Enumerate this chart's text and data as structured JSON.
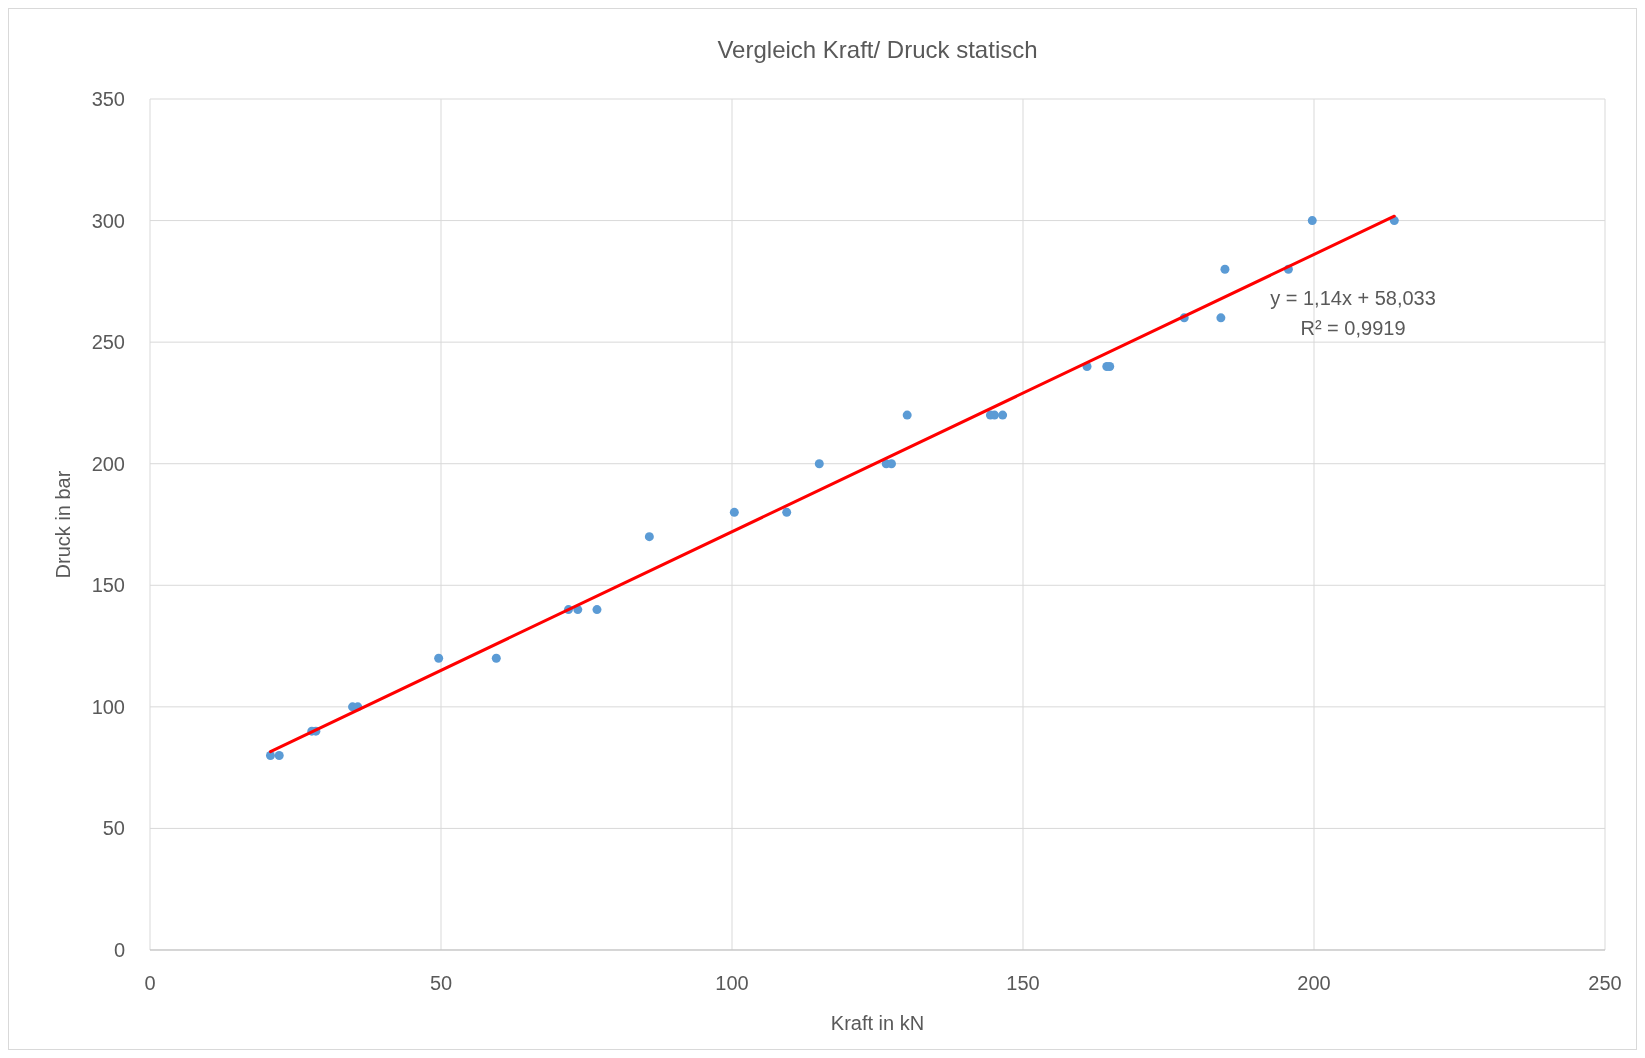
{
  "chart_data": {
    "type": "scatter",
    "title": "Vergleich Kraft/ Druck statisch",
    "xlabel": "Kraft in kN",
    "ylabel": "Druck in bar",
    "xlim": [
      0,
      250
    ],
    "xticks": [
      0,
      50,
      100,
      150,
      200,
      250
    ],
    "ylim": [
      0,
      350
    ],
    "yticks": [
      0,
      50,
      100,
      150,
      200,
      250,
      300,
      350
    ],
    "grid": true,
    "marker": "circle",
    "annotations": [
      "y = 1,14x + 58,033",
      "R² = 0,9919"
    ],
    "series": [
      {
        "color": "#5b9bd5",
        "x": [
          20.7,
          22.2,
          27.8,
          28.5,
          34.8,
          35.7,
          49.6,
          59.5,
          71.9,
          73.5,
          76.8,
          85.8,
          100.4,
          109.4,
          115.0,
          126.5,
          127.4,
          130.1,
          144.4,
          145.1,
          146.5,
          161.0,
          164.4,
          164.9,
          177.7,
          184.0,
          184.7,
          195.6,
          199.7,
          213.8
        ],
        "values": [
          80,
          80,
          90,
          90,
          100,
          100,
          120,
          120,
          140,
          140,
          140,
          170,
          180,
          180,
          200,
          200,
          200,
          220,
          220,
          220,
          220,
          240,
          240,
          240,
          260,
          260,
          280,
          280,
          300,
          300
        ]
      },
      {
        "type": "line",
        "marker": "none",
        "color": "#ff0000",
        "x": [
          20.7,
          213.8
        ],
        "values": [
          81.6,
          301.8
        ]
      }
    ]
  }
}
